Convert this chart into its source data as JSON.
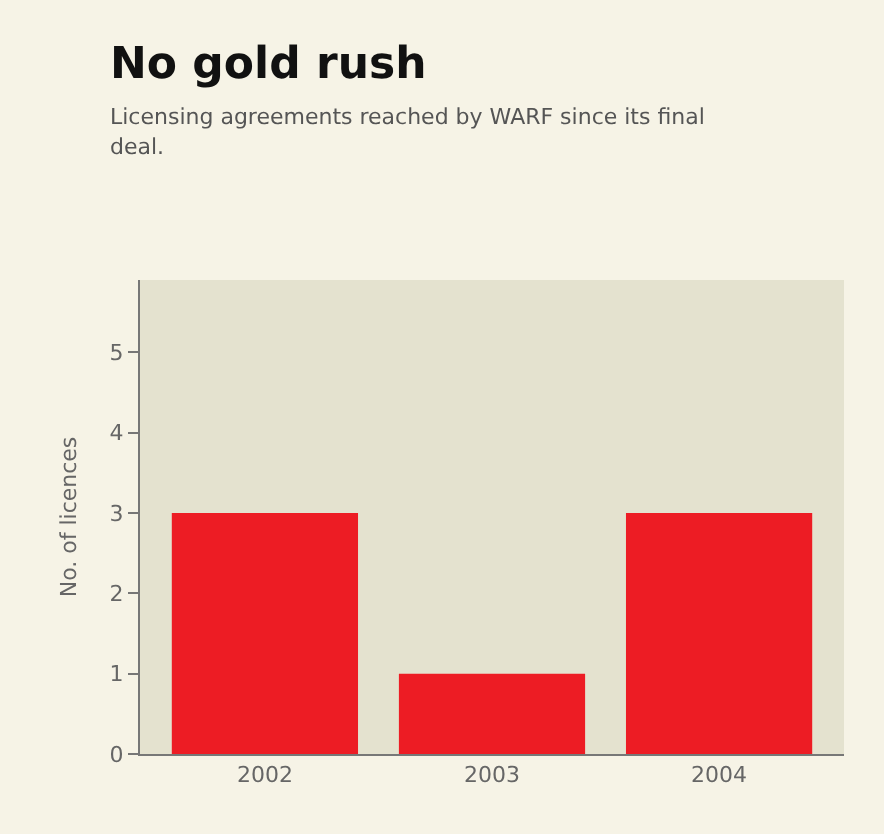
{
  "chart_data": {
    "type": "bar",
    "title": "No gold rush",
    "subtitle": "Licensing agreements reached by WARF since its final deal.",
    "ylabel": "No. of licences",
    "categories": [
      "2002",
      "2003",
      "2004"
    ],
    "values": [
      3,
      1,
      3
    ],
    "color": "#ed1c24",
    "ylim": [
      0,
      5.9
    ],
    "yticks": [
      0,
      1,
      2,
      3,
      4,
      5
    ],
    "grid": false
  }
}
